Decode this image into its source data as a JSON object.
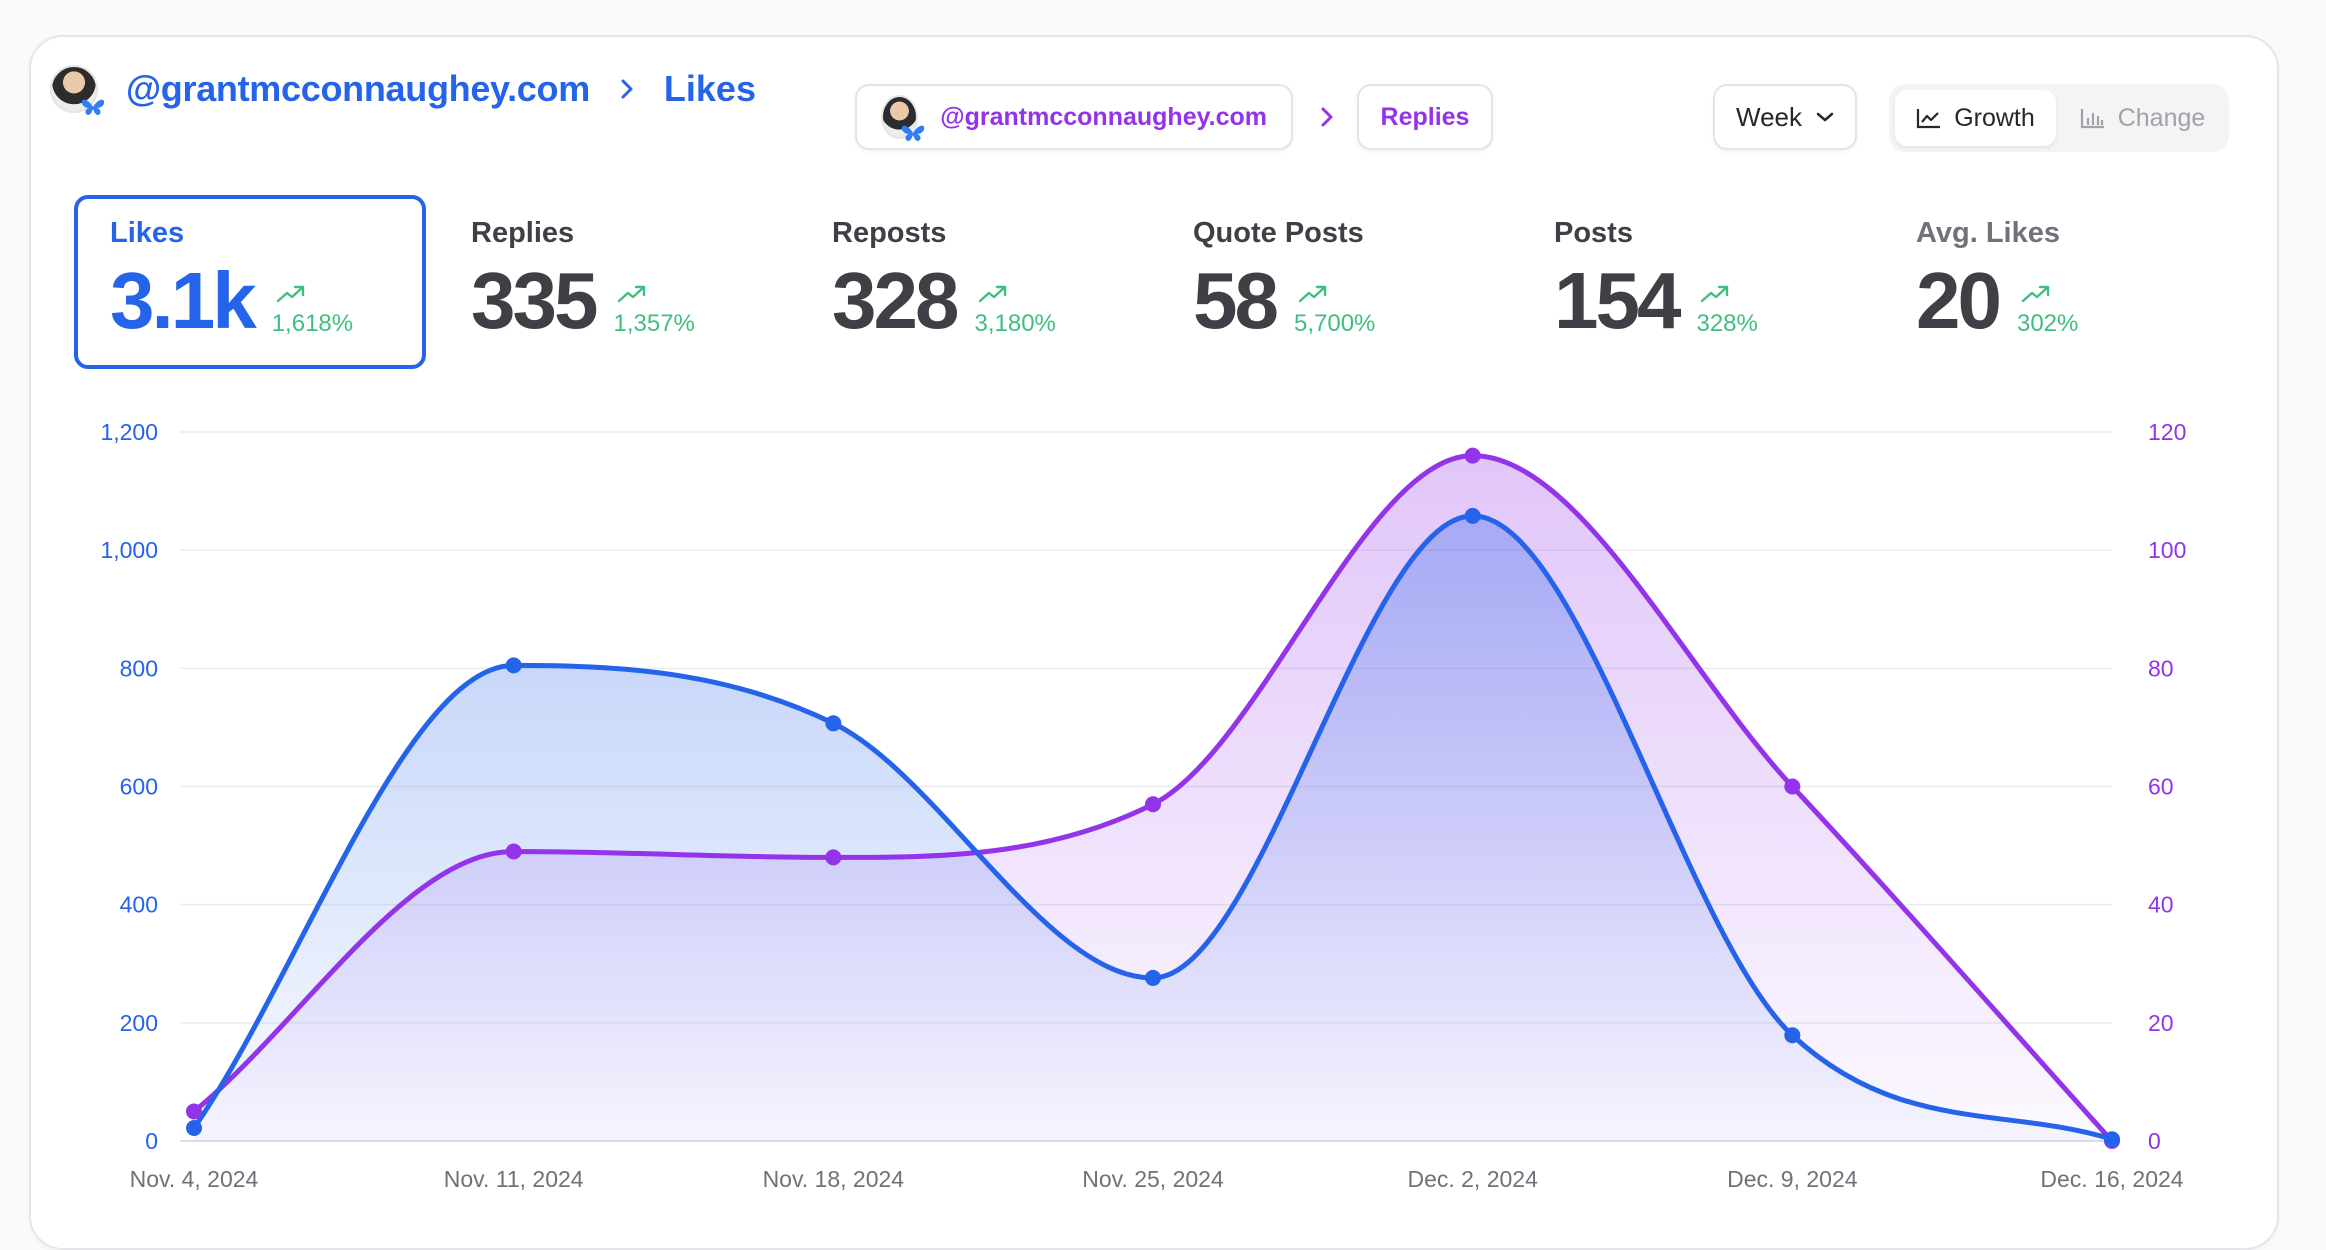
{
  "header": {
    "username": "@grantmcconnaughey.com",
    "metric": "Likes",
    "avatar_icon": "profile-avatar",
    "badge_icon": "bluesky-butterfly-icon"
  },
  "compare": {
    "username": "@grantmcconnaughey.com",
    "metric": "Replies"
  },
  "controls": {
    "period": "Week",
    "modes": [
      "Growth",
      "Change"
    ],
    "active_mode": "Growth"
  },
  "stats": [
    {
      "label": "Likes",
      "value": "3.1k",
      "change": "1,618%"
    },
    {
      "label": "Replies",
      "value": "335",
      "change": "1,357%"
    },
    {
      "label": "Reposts",
      "value": "328",
      "change": "3,180%"
    },
    {
      "label": "Quote Posts",
      "value": "58",
      "change": "5,700%"
    },
    {
      "label": "Posts",
      "value": "154",
      "change": "328%"
    },
    {
      "label": "Avg. Likes",
      "value": "20",
      "change": "302%"
    }
  ],
  "colors": {
    "primary": "#2563eb",
    "compare": "#9333ea",
    "positive": "#3fbf7f"
  },
  "chart_data": {
    "type": "area",
    "categories": [
      "Nov. 4, 2024",
      "Nov. 11, 2024",
      "Nov. 18, 2024",
      "Nov. 25, 2024",
      "Dec. 2, 2024",
      "Dec. 9, 2024",
      "Dec. 16, 2024"
    ],
    "series": [
      {
        "name": "Likes",
        "axis": "left",
        "color": "#2563eb",
        "values": [
          22,
          805,
          707,
          276,
          1058,
          179,
          3
        ]
      },
      {
        "name": "Replies",
        "axis": "right",
        "color": "#9333ea",
        "values": [
          5,
          49,
          48,
          57,
          116,
          60,
          0
        ]
      }
    ],
    "yleft": {
      "ticks": [
        "0",
        "200",
        "400",
        "600",
        "800",
        "1,000",
        "1,200"
      ],
      "lim": [
        0,
        1200
      ]
    },
    "yright": {
      "ticks": [
        "0",
        "20",
        "40",
        "60",
        "80",
        "100",
        "120"
      ],
      "lim": [
        0,
        120
      ]
    },
    "grid": true
  }
}
